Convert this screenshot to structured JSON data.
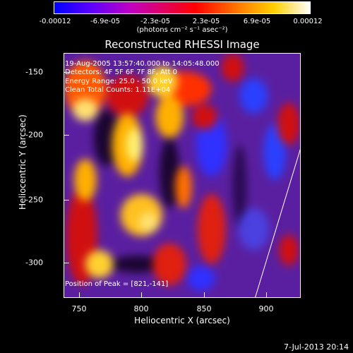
{
  "colorbar": {
    "tick_labels": [
      "-0.00012",
      "-6.9e-05",
      "-2.3e-05",
      "2.3e-05",
      "6.9e-05",
      "0.00012"
    ],
    "units": "(photons cm⁻² s⁻¹ asec⁻²)"
  },
  "title": "Reconstructed RHESSI Image",
  "annotations": {
    "time_range": "19-Aug-2005 13:57:40.000 to 14:05:48.000",
    "detectors": "Detectors: 4F 5F 6F 7F 8F, Att 0",
    "energy": "Energy Range: 25.0 - 50.0 keV",
    "clean": "Clean     Total Counts: 1.11E+04",
    "peak": "Position of Peak = [821,-141]"
  },
  "axes": {
    "xlabel": "Heliocentric X (arcsec)",
    "ylabel": "Heliocentric Y (arcsec)",
    "x_ticks": [
      "750",
      "800",
      "850",
      "900"
    ],
    "y_ticks": [
      "-150",
      "-200",
      "-250",
      "-300"
    ],
    "x_range": [
      733,
      926
    ],
    "y_range": [
      -328,
      -131
    ]
  },
  "footer": {
    "date": "7-Jul-2013 20:14"
  }
}
